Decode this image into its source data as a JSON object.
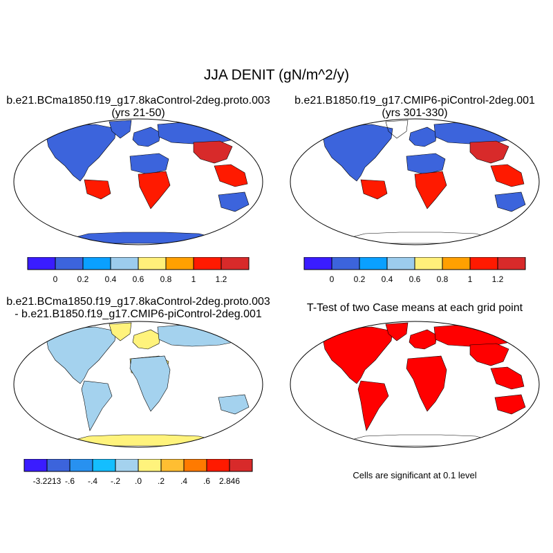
{
  "page": {
    "title": "JJA DENIT (gN/m^2/y)"
  },
  "panels": [
    {
      "id": "case1",
      "title_line1": "b.e21.BCma1850.f19_g17.8kaControl-2deg.proto.003",
      "title_line2": "(yrs 21-50)",
      "colorbar": "absolute"
    },
    {
      "id": "case2",
      "title_line1": "b.e21.B1850.f19_g17.CMIP6-piControl-2deg.001",
      "title_line2": "(yrs 301-330)",
      "colorbar": "absolute"
    },
    {
      "id": "diff",
      "title_line1": "b.e21.BCma1850.f19_g17.8kaControl-2deg.proto.003",
      "title_line2": "- b.e21.B1850.f19_g17.CMIP6-piControl-2deg.001",
      "colorbar": "difference"
    },
    {
      "id": "ttest",
      "title_line1": "T-Test of two Case means at each grid point",
      "title_line2": "",
      "note": "Cells are significant at 0.1 level"
    }
  ],
  "chart_data": [
    {
      "type": "heatmap",
      "projection": "Robinson",
      "title": "b.e21.BCma1850.f19_g17.8kaControl-2deg.proto.003 (yrs 21-50)",
      "field": "JJA DENIT",
      "units": "gN/m^2/y",
      "colorbar": {
        "levels": [
          "0",
          "0.2",
          "0.4",
          "0.6",
          "0.8",
          "1",
          "1.2"
        ],
        "colors": [
          "#3a1cff",
          "#3c64dc",
          "#0aa0ff",
          "#9ccced",
          "#fff07a",
          "#ffa000",
          "#ff1a00",
          "#d82a2a"
        ]
      },
      "regions": [
        {
          "name": "North America",
          "level": "0-0.2"
        },
        {
          "name": "Greenland",
          "level": "0-0.2"
        },
        {
          "name": "Europe",
          "level": "0-0.2"
        },
        {
          "name": "Northern Asia",
          "level": "0-0.2"
        },
        {
          "name": "East Asia",
          "level": ">1.2"
        },
        {
          "name": "Sahara",
          "level": "0-0.2"
        },
        {
          "name": "Central Africa",
          "level": ">1"
        },
        {
          "name": "Amazon",
          "level": ">1"
        },
        {
          "name": "Southeast Asia",
          "level": ">1"
        },
        {
          "name": "Australia",
          "level": "0-0.2"
        },
        {
          "name": "Antarctica",
          "level": "0-0.2"
        }
      ]
    },
    {
      "type": "heatmap",
      "projection": "Robinson",
      "title": "b.e21.B1850.f19_g17.CMIP6-piControl-2deg.001 (yrs 301-330)",
      "field": "JJA DENIT",
      "units": "gN/m^2/y",
      "colorbar": {
        "levels": [
          "0",
          "0.2",
          "0.4",
          "0.6",
          "0.8",
          "1",
          "1.2"
        ],
        "colors": [
          "#3a1cff",
          "#3c64dc",
          "#0aa0ff",
          "#9ccced",
          "#fff07a",
          "#ffa000",
          "#ff1a00",
          "#d82a2a"
        ]
      },
      "regions": [
        {
          "name": "North America",
          "level": "0-0.2"
        },
        {
          "name": "Greenland",
          "level": "none"
        },
        {
          "name": "Europe",
          "level": "0-0.2"
        },
        {
          "name": "Northern Asia",
          "level": "0-0.2"
        },
        {
          "name": "East Asia",
          "level": ">1.2"
        },
        {
          "name": "Sahara",
          "level": "0-0.2"
        },
        {
          "name": "Central Africa",
          "level": ">1"
        },
        {
          "name": "Amazon",
          "level": ">1"
        },
        {
          "name": "Southeast Asia",
          "level": ">1"
        },
        {
          "name": "Australia",
          "level": "0-0.2"
        },
        {
          "name": "Antarctica",
          "level": "none"
        }
      ]
    },
    {
      "type": "heatmap",
      "projection": "Robinson",
      "title": "b.e21.BCma1850.f19_g17.8kaControl-2deg.proto.003 - b.e21.B1850.f19_g17.CMIP6-piControl-2deg.001",
      "field": "JJA DENIT difference",
      "units": "gN/m^2/y",
      "colorbar": {
        "levels": [
          "-3.2213",
          "-.6",
          "-.4",
          "-.2",
          ".0",
          ".2",
          ".4",
          ".6",
          "2.846"
        ],
        "colors": [
          "#3a1cff",
          "#3c64dc",
          "#2891f0",
          "#14beff",
          "#a4d2ee",
          "#fff37c",
          "#ffbe32",
          "#ff7a00",
          "#ff1a00",
          "#d82a2a"
        ]
      },
      "data_min": -3.2213,
      "data_max": 2.846,
      "regions": [
        {
          "name": "North America",
          "level": "-0.2-0.0"
        },
        {
          "name": "Greenland",
          "level": "0.0-0.2"
        },
        {
          "name": "Europe",
          "level": "0.0-0.2"
        },
        {
          "name": "Northern Asia",
          "level": "-0.2-0.0"
        },
        {
          "name": "Sahara",
          "level": "0.0-0.2"
        },
        {
          "name": "Africa",
          "level": "-0.2-0.0"
        },
        {
          "name": "South America",
          "level": "-0.2-0.0"
        },
        {
          "name": "Australia",
          "level": "-0.2-0.0"
        },
        {
          "name": "Antarctica",
          "level": "0.0-0.2"
        }
      ]
    },
    {
      "type": "heatmap",
      "projection": "Robinson",
      "title": "T-Test of two Case means at each grid point",
      "annotation": "Cells are significant at 0.1 level",
      "significant_color": "#ff0000"
    }
  ]
}
